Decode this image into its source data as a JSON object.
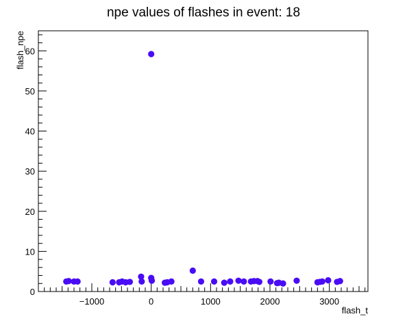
{
  "chart_data": {
    "type": "scatter",
    "title": "npe values of flashes in event: 18",
    "xlabel": "flash_t",
    "ylabel": "flash_npe",
    "xlim": [
      -1900,
      3650
    ],
    "ylim": [
      0,
      65
    ],
    "x_ticks": [
      -1000,
      0,
      1000,
      2000,
      3000
    ],
    "x_tick_labels": [
      "−1000",
      "0",
      "1000",
      "2000",
      "3000"
    ],
    "y_ticks": [
      0,
      10,
      20,
      30,
      40,
      50,
      60
    ],
    "y_tick_labels": [
      "0",
      "10",
      "20",
      "30",
      "40",
      "50",
      "60"
    ],
    "marker_color": "#4a0cf5",
    "grid": false,
    "legend": "none",
    "series": [
      {
        "name": "flash_npe",
        "points": [
          [
            -1430,
            2.5
          ],
          [
            -1390,
            2.6
          ],
          [
            -1300,
            2.5
          ],
          [
            -1240,
            2.5
          ],
          [
            -650,
            2.3
          ],
          [
            -540,
            2.3
          ],
          [
            -490,
            2.5
          ],
          [
            -430,
            2.3
          ],
          [
            -360,
            2.4
          ],
          [
            -170,
            3.7
          ],
          [
            -160,
            2.5
          ],
          [
            0,
            59.2
          ],
          [
            0,
            3.4
          ],
          [
            10,
            2.7
          ],
          [
            230,
            2.2
          ],
          [
            270,
            2.3
          ],
          [
            340,
            2.5
          ],
          [
            700,
            5.2
          ],
          [
            840,
            2.5
          ],
          [
            1060,
            2.5
          ],
          [
            1230,
            2.2
          ],
          [
            1330,
            2.5
          ],
          [
            1470,
            2.7
          ],
          [
            1560,
            2.5
          ],
          [
            1680,
            2.5
          ],
          [
            1730,
            2.6
          ],
          [
            1790,
            2.6
          ],
          [
            1820,
            2.4
          ],
          [
            2010,
            2.5
          ],
          [
            2120,
            2.1
          ],
          [
            2150,
            2.2
          ],
          [
            2220,
            2.0
          ],
          [
            2450,
            2.7
          ],
          [
            2800,
            2.3
          ],
          [
            2840,
            2.4
          ],
          [
            2880,
            2.5
          ],
          [
            2980,
            2.8
          ],
          [
            3130,
            2.4
          ],
          [
            3180,
            2.6
          ]
        ]
      }
    ]
  }
}
